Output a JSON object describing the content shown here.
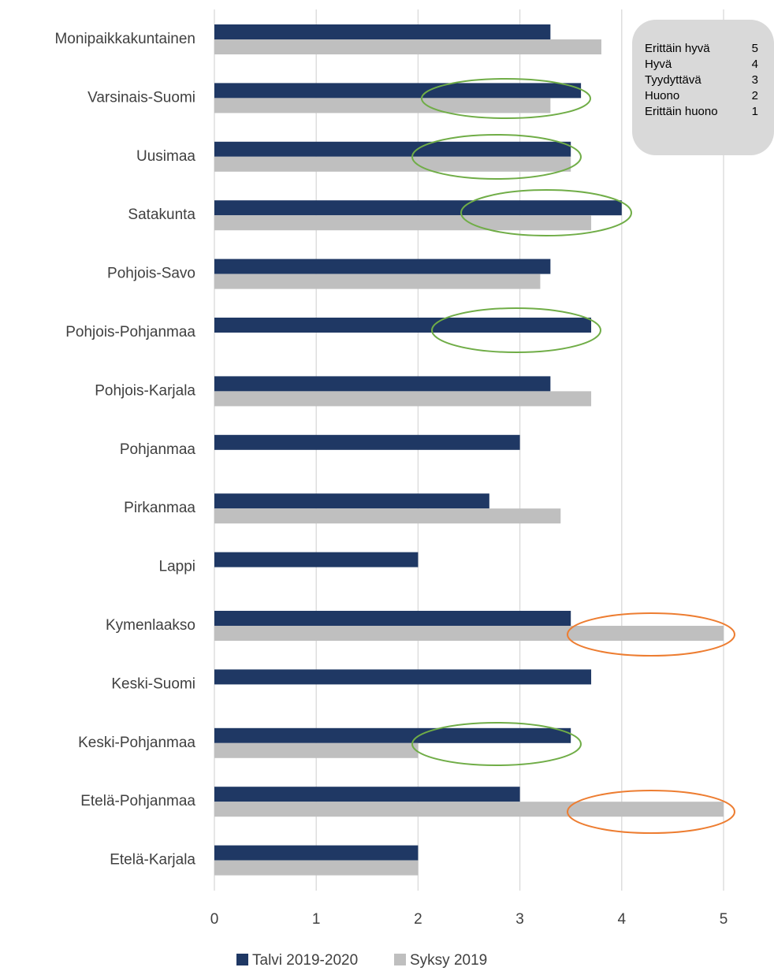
{
  "chart_data": {
    "type": "bar",
    "orientation": "horizontal",
    "categories": [
      "Monipaikkakuntainen",
      "Varsinais-Suomi",
      "Uusimaa",
      "Satakunta",
      "Pohjois-Savo",
      "Pohjois-Pohjanmaa",
      "Pohjois-Karjala",
      "Pohjanmaa",
      "Pirkanmaa",
      "Lappi",
      "Kymenlaakso",
      "Keski-Suomi",
      "Keski-Pohjanmaa",
      "Etelä-Pohjanmaa",
      "Etelä-Karjala"
    ],
    "series": [
      {
        "name": "Talvi 2019-2020",
        "color": "#1f3864",
        "values": [
          3.3,
          3.6,
          3.5,
          4.0,
          3.3,
          3.7,
          3.3,
          3.0,
          2.7,
          2.0,
          3.5,
          3.7,
          3.5,
          3.0,
          2.0
        ]
      },
      {
        "name": "Syksy 2019",
        "color": "#bfbfbf",
        "values": [
          3.8,
          3.3,
          3.5,
          3.7,
          3.2,
          null,
          3.7,
          null,
          3.4,
          null,
          5,
          null,
          2.0,
          5,
          2.0
        ]
      }
    ],
    "xlim": [
      0,
      5
    ],
    "xticks": [
      0,
      1,
      2,
      3,
      4,
      5
    ],
    "grid": true,
    "legend": "bottom",
    "scale_legend": [
      {
        "label": "Erittäin hyvä",
        "value": 5
      },
      {
        "label": "Hyvä",
        "value": 4
      },
      {
        "label": "Tyydyttävä",
        "value": 3
      },
      {
        "label": "Huono",
        "value": 2
      },
      {
        "label": "Erittäin huono",
        "value": 1
      }
    ]
  }
}
